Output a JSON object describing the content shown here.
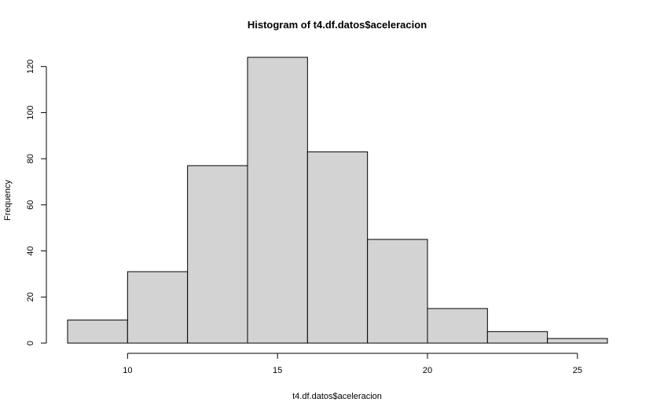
{
  "chart_data": {
    "type": "bar",
    "title": "Histogram of t4.df.datos$aceleracion",
    "xlabel": "t4.df.datos$aceleracion",
    "ylabel": "Frequency",
    "bins": [
      {
        "start": 8,
        "end": 10,
        "count": 10
      },
      {
        "start": 10,
        "end": 12,
        "count": 31
      },
      {
        "start": 12,
        "end": 14,
        "count": 77
      },
      {
        "start": 14,
        "end": 16,
        "count": 124
      },
      {
        "start": 16,
        "end": 18,
        "count": 83
      },
      {
        "start": 18,
        "end": 20,
        "count": 45
      },
      {
        "start": 20,
        "end": 22,
        "count": 15
      },
      {
        "start": 22,
        "end": 24,
        "count": 5
      },
      {
        "start": 24,
        "end": 26,
        "count": 2
      }
    ],
    "xticks": [
      10,
      15,
      20,
      25
    ],
    "yticks": [
      0,
      20,
      40,
      60,
      80,
      100,
      120
    ],
    "xlim": [
      8,
      26
    ],
    "ylim": [
      0,
      124
    ],
    "bar_color": "#d3d3d3",
    "grid": false,
    "legend": "none"
  }
}
